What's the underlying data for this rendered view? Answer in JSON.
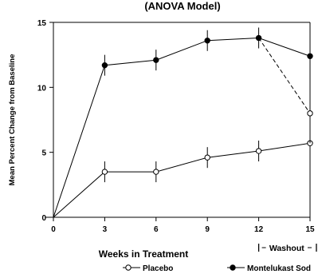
{
  "chart_data": {
    "type": "line",
    "title": "(ANOVA Model)",
    "xlabel": "Weeks in Treatment",
    "ylabel": "Mean Percent Change from Baseline",
    "xlim": [
      0,
      15
    ],
    "ylim": [
      0,
      15
    ],
    "x_ticks": [
      "0",
      "3",
      "6",
      "9",
      "12",
      "15"
    ],
    "y_ticks": [
      "0",
      "5",
      "10",
      "15"
    ],
    "grid": false,
    "legend_position": "bottom",
    "annotations": [
      {
        "text": "Washout",
        "x_range": [
          12,
          15
        ]
      }
    ],
    "series": [
      {
        "name": "Placebo",
        "marker": "open-circle",
        "line": "solid",
        "color": "#000000",
        "points": [
          {
            "x": 0,
            "y": 0
          },
          {
            "x": 3,
            "y": 3.5,
            "err": 0.8
          },
          {
            "x": 6,
            "y": 3.5,
            "err": 0.8
          },
          {
            "x": 9,
            "y": 4.6,
            "err": 0.8
          },
          {
            "x": 12,
            "y": 5.1,
            "err": 0.8
          },
          {
            "x": 15,
            "y": 5.7,
            "err": 0.8
          }
        ]
      },
      {
        "name": "Montelukast Sod",
        "marker": "filled-circle",
        "line": "solid",
        "color": "#000000",
        "points": [
          {
            "x": 0,
            "y": 0
          },
          {
            "x": 3,
            "y": 11.7,
            "err": 0.8
          },
          {
            "x": 6,
            "y": 12.1,
            "err": 0.8
          },
          {
            "x": 9,
            "y": 13.6,
            "err": 0.8
          },
          {
            "x": 12,
            "y": 13.8,
            "err": 0.8
          },
          {
            "x": 15,
            "y": 12.4,
            "err": 0.8
          }
        ]
      },
      {
        "name": "",
        "marker": "open-circle",
        "line": "dashed",
        "color": "#000000",
        "points": [
          {
            "x": 12,
            "y": 13.8
          },
          {
            "x": 15,
            "y": 8.0,
            "err": 2.3
          }
        ]
      }
    ]
  }
}
